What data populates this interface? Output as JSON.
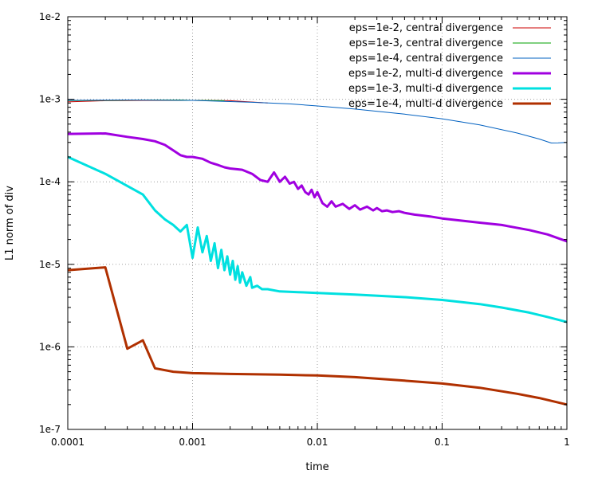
{
  "chart_data": {
    "type": "line",
    "xlabel": "time",
    "ylabel": "L1 norm of div",
    "xscale": "log",
    "yscale": "log",
    "xlim": [
      0.0001,
      1
    ],
    "ylim": [
      1e-07,
      0.01
    ],
    "grid": true,
    "legend_position": "top-right",
    "x_ticks": [
      {
        "value": 0.0001,
        "label": "0.0001"
      },
      {
        "value": 0.001,
        "label": "0.001"
      },
      {
        "value": 0.01,
        "label": "0.01"
      },
      {
        "value": 0.1,
        "label": "0.1"
      },
      {
        "value": 1,
        "label": "1"
      }
    ],
    "y_ticks": [
      {
        "value": 1e-07,
        "label": "1e-7"
      },
      {
        "value": 1e-06,
        "label": "1e-6"
      },
      {
        "value": 1e-05,
        "label": "1e-5"
      },
      {
        "value": 0.0001,
        "label": "1e-4"
      },
      {
        "value": 0.001,
        "label": "1e-3"
      },
      {
        "value": 0.01,
        "label": "1e-2"
      }
    ],
    "series": [
      {
        "name": "eps=1e-2, central divergence",
        "color": "#cc0000",
        "width": 1,
        "x": [
          0.0001,
          0.0002,
          0.0004,
          0.0008,
          0.001,
          0.002,
          0.004
        ],
        "y": [
          0.00093,
          0.00096,
          0.00097,
          0.00097,
          0.00097,
          0.00096,
          0.0009
        ]
      },
      {
        "name": "eps=1e-3, central divergence",
        "color": "#00a000",
        "width": 1,
        "x": [
          0.0001,
          0.0002,
          0.0004,
          0.0008,
          0.001,
          0.0018
        ],
        "y": [
          0.00096,
          0.00097,
          0.00098,
          0.00098,
          0.00097,
          0.00096
        ]
      },
      {
        "name": "eps=1e-4, central divergence",
        "color": "#0060c0",
        "width": 1,
        "x": [
          0.0001,
          0.0003,
          0.001,
          0.003,
          0.006,
          0.01,
          0.02,
          0.05,
          0.1,
          0.2,
          0.4,
          0.6,
          0.75,
          0.85,
          1.0
        ],
        "y": [
          0.00097,
          0.00098,
          0.00097,
          0.00092,
          0.00088,
          0.00083,
          0.00076,
          0.00066,
          0.00058,
          0.00049,
          0.00039,
          0.00033,
          0.000295,
          0.000296,
          0.0003
        ]
      },
      {
        "name": "eps=1e-2, multi-d divergence",
        "color": "#a000e0",
        "width": 3,
        "x": [
          0.0001,
          0.0002,
          0.0003,
          0.0004,
          0.0005,
          0.0006,
          0.0007,
          0.0008,
          0.0009,
          0.001,
          0.0012,
          0.0014,
          0.0016,
          0.0018,
          0.002,
          0.0025,
          0.003,
          0.0035,
          0.004,
          0.0045,
          0.005,
          0.0055,
          0.006,
          0.0065,
          0.007,
          0.0075,
          0.008,
          0.0085,
          0.009,
          0.0095,
          0.01,
          0.011,
          0.012,
          0.013,
          0.014,
          0.016,
          0.018,
          0.02,
          0.022,
          0.025,
          0.028,
          0.03,
          0.033,
          0.036,
          0.04,
          0.045,
          0.05,
          0.06,
          0.07,
          0.08,
          0.1,
          0.2,
          0.3,
          0.5,
          0.7,
          1.0
        ],
        "y": [
          0.00038,
          0.000385,
          0.00035,
          0.00033,
          0.00031,
          0.00028,
          0.00024,
          0.00021,
          0.0002,
          0.0002,
          0.00019,
          0.00017,
          0.00016,
          0.00015,
          0.000145,
          0.00014,
          0.000125,
          0.000105,
          0.0001,
          0.00013,
          0.0001,
          0.000115,
          9.5e-05,
          0.0001,
          8.2e-05,
          9e-05,
          7.5e-05,
          7e-05,
          8e-05,
          6.5e-05,
          7.5e-05,
          5.5e-05,
          5e-05,
          5.8e-05,
          5e-05,
          5.4e-05,
          4.7e-05,
          5.2e-05,
          4.6e-05,
          5e-05,
          4.5e-05,
          4.8e-05,
          4.4e-05,
          4.5e-05,
          4.3e-05,
          4.4e-05,
          4.2e-05,
          4e-05,
          3.9e-05,
          3.8e-05,
          3.6e-05,
          3.2e-05,
          3e-05,
          2.6e-05,
          2.3e-05,
          1.9e-05
        ]
      },
      {
        "name": "eps=1e-3, multi-d divergence",
        "color": "#00e0e0",
        "width": 3,
        "x": [
          0.0001,
          0.0002,
          0.0004,
          0.0005,
          0.0006,
          0.0007,
          0.0008,
          0.0009,
          0.001,
          0.0011,
          0.0012,
          0.0013,
          0.0014,
          0.0015,
          0.0016,
          0.0017,
          0.0018,
          0.0019,
          0.002,
          0.0021,
          0.0022,
          0.0023,
          0.0024,
          0.0025,
          0.0027,
          0.0029,
          0.003,
          0.0033,
          0.0036,
          0.004,
          0.005,
          0.007,
          0.01,
          0.02,
          0.05,
          0.1,
          0.2,
          0.3,
          0.5,
          0.7,
          1.0
        ],
        "y": [
          0.0002,
          0.000125,
          7e-05,
          4.5e-05,
          3.5e-05,
          3e-05,
          2.5e-05,
          3e-05,
          1.2e-05,
          2.8e-05,
          1.4e-05,
          2.2e-05,
          1.1e-05,
          1.8e-05,
          9e-06,
          1.5e-05,
          8.5e-06,
          1.25e-05,
          7.5e-06,
          1.1e-05,
          6.5e-06,
          9.5e-06,
          6e-06,
          8e-06,
          5.5e-06,
          7e-06,
          5.2e-06,
          5.5e-06,
          5e-06,
          5e-06,
          4.7e-06,
          4.6e-06,
          4.5e-06,
          4.3e-06,
          4e-06,
          3.7e-06,
          3.3e-06,
          3e-06,
          2.6e-06,
          2.3e-06,
          2e-06
        ]
      },
      {
        "name": "eps=1e-4, multi-d divergence",
        "color": "#b03000",
        "width": 3,
        "x": [
          0.0001,
          0.0002,
          0.0003,
          0.0004,
          0.0005,
          0.0007,
          0.001,
          0.002,
          0.005,
          0.01,
          0.02,
          0.05,
          0.1,
          0.2,
          0.4,
          0.6,
          1.0
        ],
        "y": [
          8.5e-06,
          9.2e-06,
          9.5e-07,
          1.2e-06,
          5.5e-07,
          5e-07,
          4.8e-07,
          4.7e-07,
          4.6e-07,
          4.5e-07,
          4.3e-07,
          3.9e-07,
          3.6e-07,
          3.2e-07,
          2.7e-07,
          2.4e-07,
          2e-07
        ]
      }
    ]
  }
}
